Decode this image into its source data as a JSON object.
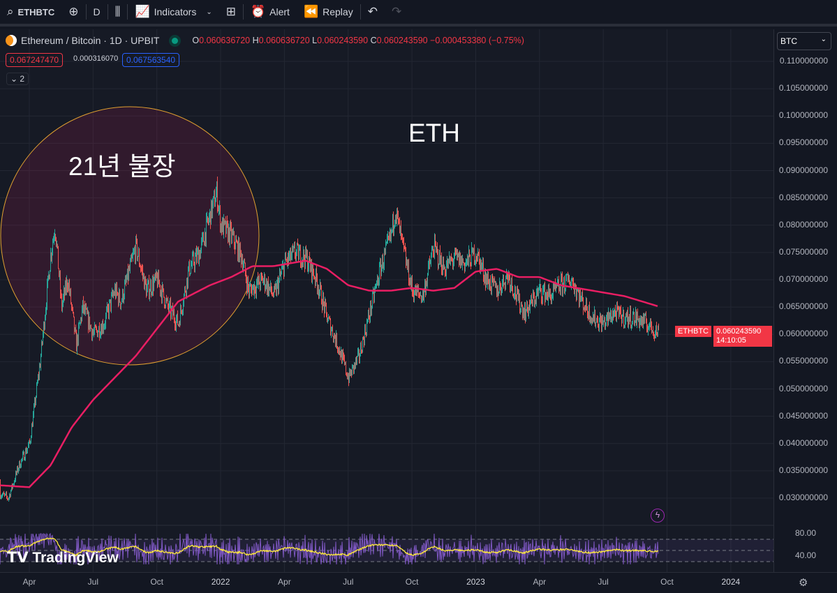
{
  "toolbar": {
    "symbol": "ETHBTC",
    "interval": "D",
    "indicators": "Indicators",
    "alert": "Alert",
    "replay": "Replay"
  },
  "legend": {
    "title": "Ethereum / Bitcoin · 1D · UPBIT",
    "o_label": "O",
    "o": "0.060636720",
    "h_label": "H",
    "h": "0.060636720",
    "l_label": "L",
    "l": "0.060243590",
    "c_label": "C",
    "c": "0.060243590",
    "change": "−0.000453380 (−0.75%)",
    "bid": "0.067247470",
    "spread": "0.000316070",
    "ask": "0.067563540",
    "collapsed_count": "2"
  },
  "annotations": {
    "circle_text": "21년 불장",
    "label": "ETH"
  },
  "currency": "BTC",
  "last_price": {
    "symbol": "ETHBTC",
    "price": "0.060243590",
    "countdown": "14:10:05"
  },
  "watermark": "TradingView",
  "colors": {
    "up": "#26a69a",
    "down": "#ef5350",
    "ma": "#e91e63",
    "rsi": "#7e57c2",
    "rsi_ma": "#ffeb3b",
    "circle": "#e0a030"
  },
  "chart_data": {
    "type": "candlestick",
    "y_ticks": [
      "0.110000000",
      "0.105000000",
      "0.100000000",
      "0.095000000",
      "0.090000000",
      "0.085000000",
      "0.080000000",
      "0.075000000",
      "0.070000000",
      "0.065000000",
      "0.060000000",
      "0.055000000",
      "0.050000000",
      "0.045000000",
      "0.040000000",
      "0.035000000",
      "0.030000000"
    ],
    "ylim": [
      0.03,
      0.11
    ],
    "x_ticks": [
      "Apr",
      "Jul",
      "Oct",
      "2022",
      "Apr",
      "Jul",
      "Oct",
      "2023",
      "Apr",
      "Jul",
      "Oct",
      "2024"
    ],
    "x_tick_months": [
      3,
      6,
      9,
      12,
      15,
      18,
      21,
      24,
      27,
      30,
      33,
      36
    ],
    "price_path": [
      [
        1.0,
        0.033
      ],
      [
        1.5,
        0.031
      ],
      [
        2,
        0.03
      ],
      [
        2.5,
        0.036
      ],
      [
        3,
        0.04
      ],
      [
        3.5,
        0.055
      ],
      [
        4,
        0.075
      ],
      [
        4.2,
        0.08
      ],
      [
        4.5,
        0.065
      ],
      [
        4.8,
        0.07
      ],
      [
        5.2,
        0.058
      ],
      [
        5.5,
        0.065
      ],
      [
        6,
        0.06
      ],
      [
        6.5,
        0.062
      ],
      [
        7,
        0.068
      ],
      [
        7.3,
        0.066
      ],
      [
        8,
        0.076
      ],
      [
        8.5,
        0.068
      ],
      [
        9,
        0.07
      ],
      [
        9.5,
        0.065
      ],
      [
        10,
        0.062
      ],
      [
        10.5,
        0.072
      ],
      [
        11,
        0.075
      ],
      [
        11.5,
        0.082
      ],
      [
        11.8,
        0.086
      ],
      [
        12,
        0.08
      ],
      [
        12.5,
        0.078
      ],
      [
        13,
        0.074
      ],
      [
        13.3,
        0.068
      ],
      [
        14,
        0.07
      ],
      [
        14.5,
        0.067
      ],
      [
        15,
        0.073
      ],
      [
        15.5,
        0.075
      ],
      [
        16,
        0.074
      ],
      [
        16.5,
        0.07
      ],
      [
        17,
        0.063
      ],
      [
        17.5,
        0.058
      ],
      [
        18,
        0.052
      ],
      [
        18.5,
        0.056
      ],
      [
        19,
        0.064
      ],
      [
        19.5,
        0.072
      ],
      [
        20,
        0.078
      ],
      [
        20.2,
        0.083
      ],
      [
        20.5,
        0.077
      ],
      [
        21,
        0.068
      ],
      [
        21.5,
        0.067
      ],
      [
        22,
        0.076
      ],
      [
        22.5,
        0.072
      ],
      [
        23,
        0.074
      ],
      [
        23.5,
        0.073
      ],
      [
        24,
        0.075
      ],
      [
        24.5,
        0.07
      ],
      [
        25,
        0.068
      ],
      [
        25.5,
        0.071
      ],
      [
        26,
        0.066
      ],
      [
        26.3,
        0.064
      ],
      [
        27,
        0.068
      ],
      [
        27.5,
        0.067
      ],
      [
        28,
        0.069
      ],
      [
        28.5,
        0.07
      ],
      [
        29,
        0.066
      ],
      [
        29.5,
        0.063
      ],
      [
        30,
        0.062
      ],
      [
        30.5,
        0.064
      ],
      [
        31,
        0.063
      ],
      [
        31.5,
        0.063
      ],
      [
        32,
        0.062
      ],
      [
        32.5,
        0.0605
      ]
    ],
    "ma_path": [
      [
        1,
        0.0325
      ],
      [
        3,
        0.032
      ],
      [
        4,
        0.036
      ],
      [
        5,
        0.043
      ],
      [
        6,
        0.048
      ],
      [
        7,
        0.052
      ],
      [
        8,
        0.056
      ],
      [
        9,
        0.061
      ],
      [
        10,
        0.066
      ],
      [
        11,
        0.068
      ],
      [
        11.5,
        0.069
      ],
      [
        12.5,
        0.0705
      ],
      [
        13.5,
        0.0725
      ],
      [
        14.5,
        0.0725
      ],
      [
        16,
        0.0735
      ],
      [
        17,
        0.072
      ],
      [
        18,
        0.069
      ],
      [
        19,
        0.068
      ],
      [
        20,
        0.068
      ],
      [
        21,
        0.0685
      ],
      [
        22,
        0.068
      ],
      [
        23,
        0.0685
      ],
      [
        24,
        0.0715
      ],
      [
        25,
        0.072
      ],
      [
        26,
        0.0705
      ],
      [
        27,
        0.0705
      ],
      [
        28,
        0.069
      ],
      [
        29.5,
        0.068
      ],
      [
        31,
        0.067
      ],
      [
        32.7,
        0.065
      ]
    ],
    "rsi_ticks": [
      "80.00",
      "40.00"
    ]
  }
}
